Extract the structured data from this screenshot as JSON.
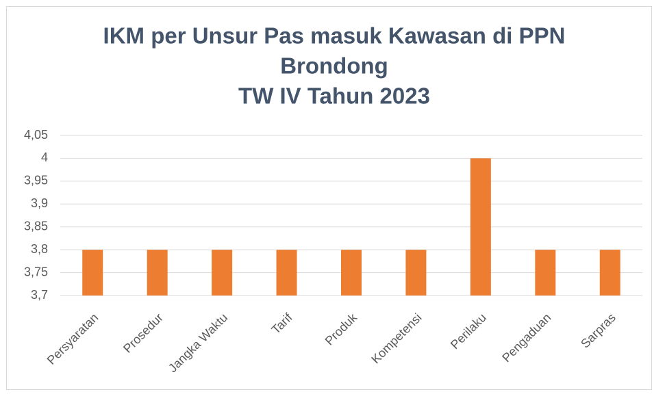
{
  "chart_data": {
    "type": "bar",
    "title": [
      "IKM per Unsur Pas masuk Kawasan di PPN",
      "Brondong",
      "TW IV Tahun 2023"
    ],
    "categories": [
      "Persyaratan",
      "Prosedur",
      "Jangka Waktu",
      "Tarif",
      "Produk",
      "Kompetensi",
      "Perilaku",
      "Pengaduan",
      "Sarpras"
    ],
    "values": [
      3.8,
      3.8,
      3.8,
      3.8,
      3.8,
      3.8,
      4,
      3.8,
      3.8
    ],
    "color": "#ed7d31",
    "ylim": [
      3.7,
      4.05
    ],
    "yticks": [
      {
        "value": 3.7,
        "label": "3,7"
      },
      {
        "value": 3.75,
        "label": "3,75"
      },
      {
        "value": 3.8,
        "label": "3,8"
      },
      {
        "value": 3.85,
        "label": "3,85"
      },
      {
        "value": 3.9,
        "label": "3,9"
      },
      {
        "value": 3.95,
        "label": "3,95"
      },
      4,
      {
        "value": 4.05,
        "label": "4,05"
      }
    ],
    "grid": true
  }
}
